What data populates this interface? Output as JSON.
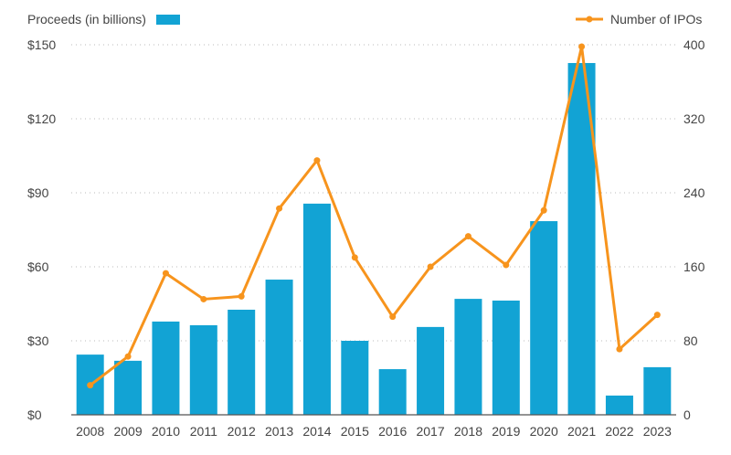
{
  "chart_data": {
    "type": "bar",
    "title": "",
    "categories": [
      "2008",
      "2009",
      "2010",
      "2011",
      "2012",
      "2013",
      "2014",
      "2015",
      "2016",
      "2017",
      "2018",
      "2019",
      "2020",
      "2021",
      "2022",
      "2023"
    ],
    "series": [
      {
        "name": "Proceeds (in billions)",
        "type": "bar",
        "axis": "left",
        "color": "#12a3d4",
        "values": [
          24.4,
          21.9,
          37.8,
          36.3,
          42.6,
          54.8,
          85.6,
          30.0,
          18.5,
          35.6,
          47.0,
          46.3,
          78.5,
          142.6,
          7.8,
          19.3
        ]
      },
      {
        "name": "Number of IPOs",
        "type": "line",
        "axis": "right",
        "color": "#f7941d",
        "values": [
          32,
          63,
          153,
          125,
          128,
          223,
          275,
          170,
          106,
          160,
          193,
          162,
          221,
          398,
          71,
          108
        ]
      }
    ],
    "left_axis": {
      "label": "",
      "ylim": [
        0,
        150
      ],
      "ticks": [
        0,
        30,
        60,
        90,
        120,
        150
      ],
      "tick_labels": [
        "$0",
        "$30",
        "$60",
        "$90",
        "$120",
        "$150"
      ]
    },
    "right_axis": {
      "label": "",
      "ylim": [
        0,
        400
      ],
      "ticks": [
        0,
        80,
        160,
        240,
        320,
        400
      ],
      "tick_labels": [
        "0",
        "80",
        "160",
        "240",
        "320",
        "400"
      ]
    },
    "xlabel": "",
    "grid": "horizontal dotted",
    "legend": [
      {
        "label": "Proceeds (in billions)",
        "placement": "top-left",
        "marker": "bar"
      },
      {
        "label": "Number of IPOs",
        "placement": "top-right",
        "marker": "line-dot"
      }
    ]
  }
}
